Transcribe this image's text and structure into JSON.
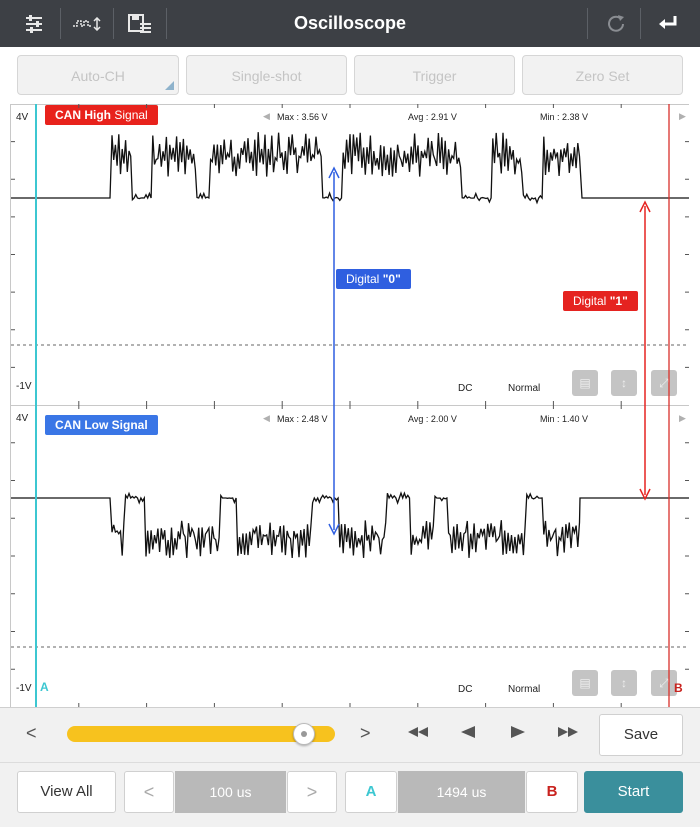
{
  "header": {
    "title": "Oscilloscope",
    "icons": [
      "settings-sliders-icon",
      "waveform-icon",
      "save-list-icon",
      "refresh-icon",
      "back-icon"
    ]
  },
  "toolbar": {
    "auto_ch": "Auto-CH",
    "single_shot": "Single-shot",
    "trigger": "Trigger",
    "zero_set": "Zero Set"
  },
  "channel1": {
    "label_bold": "CAN High",
    "label_rest": "Signal",
    "max": "Max : 3.56 V",
    "avg": "Avg : 2.91 V",
    "min": "Min : 2.38 V",
    "top_scale": "4V",
    "bottom_scale": "-1V",
    "coupling": "DC",
    "mode": "Normal"
  },
  "channel2": {
    "label_bold": "CAN Low",
    "label_rest": "Signal",
    "max": "Max : 2.48 V",
    "avg": "Avg : 2.00 V",
    "min": "Min : 1.40 V",
    "top_scale": "4V",
    "bottom_scale": "-1V",
    "coupling": "DC",
    "mode": "Normal"
  },
  "callouts": {
    "digital0_prefix": "Digital",
    "digital0_value": "\"0\"",
    "digital1_prefix": "Digital",
    "digital1_value": "\"1\""
  },
  "cursors": {
    "a": "A",
    "b": "B"
  },
  "playback": {
    "prev": "<",
    "next": ">",
    "slider_position": 0.92,
    "save": "Save"
  },
  "footer": {
    "view_all": "View All",
    "timebase": "100 us",
    "cursor_a": "A",
    "cursor_delta": "1494 us",
    "cursor_b": "B",
    "start": "Start",
    "prev": "<",
    "next": ">"
  },
  "colors": {
    "high_badge": "#e8221c",
    "low_badge": "#3a76e6",
    "digital0": "#2f5fe0",
    "digital1": "#e52320",
    "cursor_a": "#3cc7d1",
    "cursor_b": "#c9231f",
    "slider_fill": "#f7c21e",
    "start_button": "#3a8f9c"
  }
}
